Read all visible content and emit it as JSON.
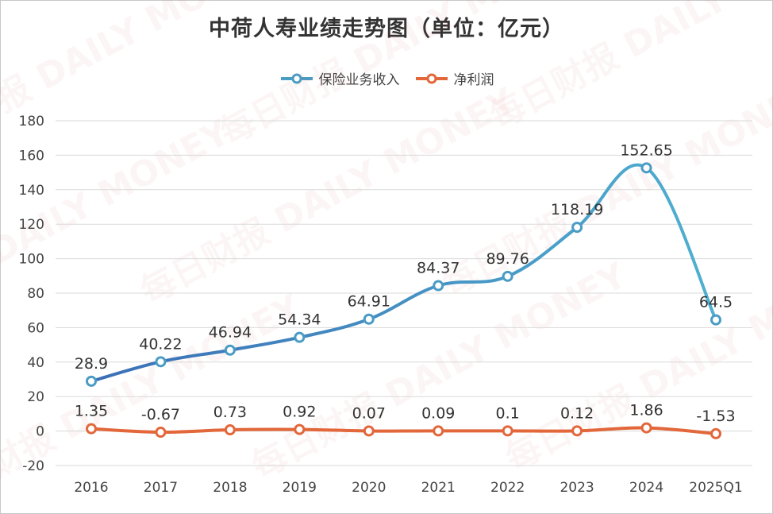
{
  "chart_data": {
    "type": "line",
    "title": "中荷人寿业绩走势图（单位：亿元）",
    "categories": [
      "2016",
      "2017",
      "2018",
      "2019",
      "2020",
      "2021",
      "2022",
      "2023",
      "2024",
      "2025Q1"
    ],
    "series": [
      {
        "name": "保险业务收入",
        "values": [
          28.9,
          40.22,
          46.94,
          54.34,
          64.91,
          84.37,
          89.76,
          118.19,
          152.65,
          64.5
        ],
        "labels": [
          "28.9",
          "40.22",
          "46.94",
          "54.34",
          "64.91",
          "84.37",
          "89.76",
          "118.19",
          "152.65",
          "64.5"
        ],
        "color": "#4a9cc4"
      },
      {
        "name": "净利润",
        "values": [
          1.35,
          -0.67,
          0.73,
          0.92,
          0.07,
          0.09,
          0.1,
          0.12,
          1.86,
          -1.53
        ],
        "labels": [
          "1.35",
          "-0.67",
          "0.73",
          "0.92",
          "0.07",
          "0.09",
          "0.1",
          "0.12",
          "1.86",
          "-1.53"
        ],
        "color": "#e2673a"
      }
    ],
    "ylim": [
      -20,
      180
    ],
    "yticks": [
      -20,
      0,
      20,
      40,
      60,
      80,
      100,
      120,
      140,
      160,
      180
    ],
    "grid": true,
    "legend_position": "top-center",
    "smooth": true,
    "marker": "hollow-circle"
  },
  "watermark": "每日财报 DAILY MONEY"
}
